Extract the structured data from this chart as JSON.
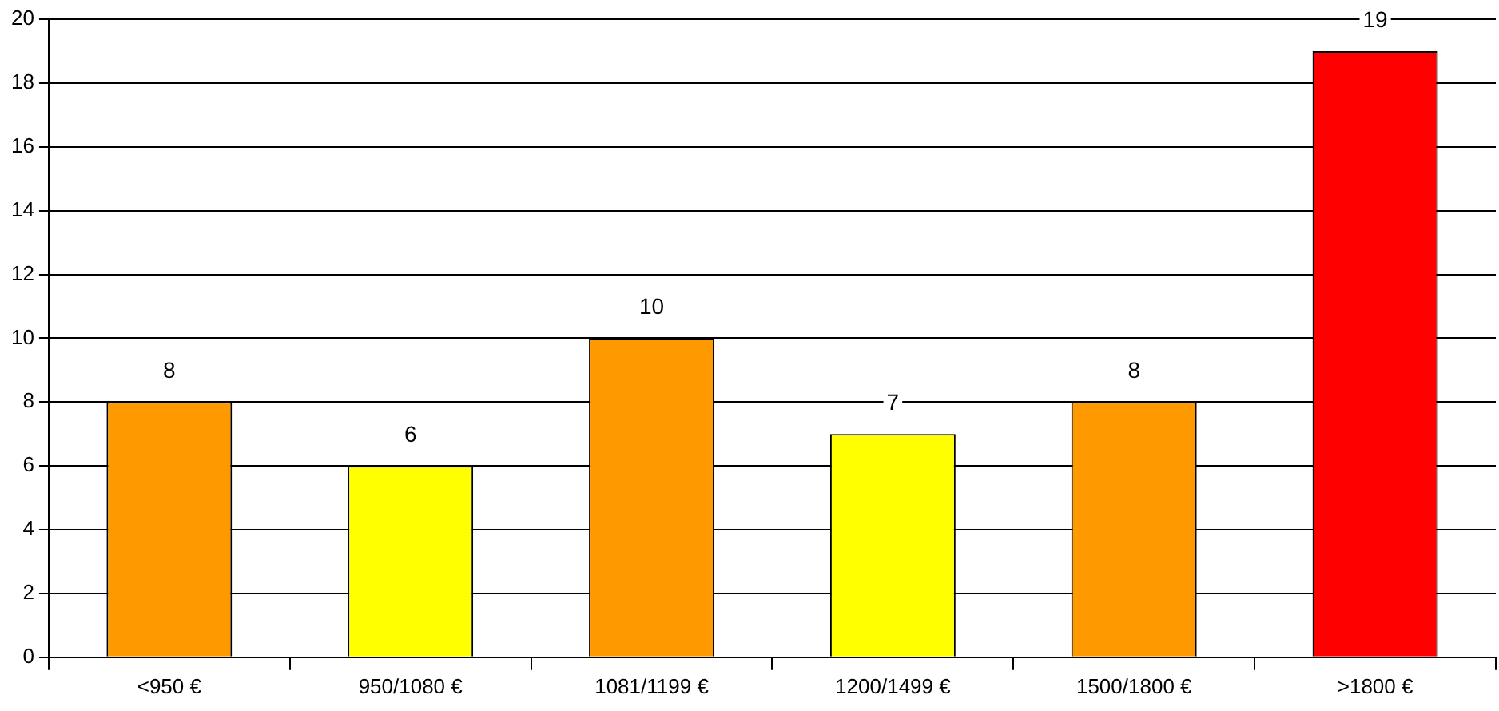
{
  "chart_data": {
    "type": "bar",
    "categories": [
      "<950 €",
      "950/1080 €",
      "1081/1199 €",
      "1200/1499 €",
      "1500/1800 €",
      ">1800 €"
    ],
    "values": [
      8,
      6,
      10,
      7,
      8,
      19
    ],
    "colors": [
      "#ff9900",
      "#ffff00",
      "#ff9900",
      "#ffff00",
      "#ff9900",
      "#ff0000"
    ],
    "ylim": [
      0,
      20
    ],
    "yticks": [
      0,
      2,
      4,
      6,
      8,
      10,
      12,
      14,
      16,
      18,
      20
    ],
    "grid": "y",
    "legend": false,
    "data_labels": true
  }
}
